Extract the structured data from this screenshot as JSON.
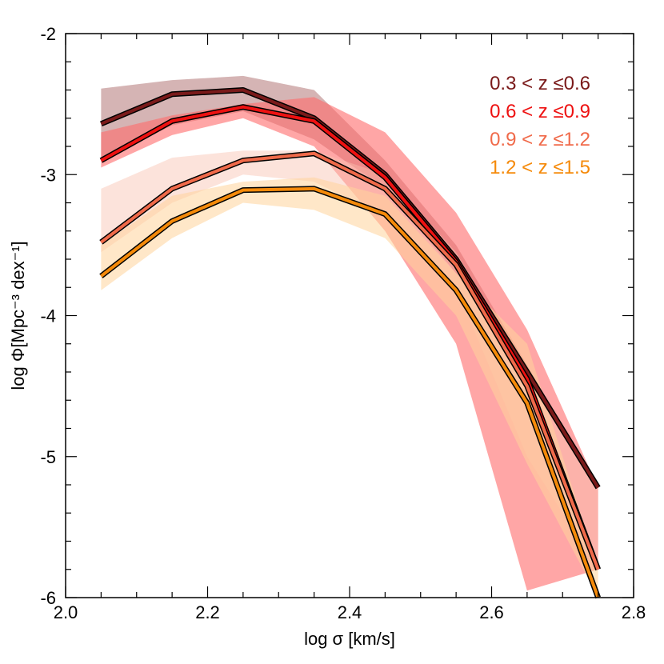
{
  "chart_data": {
    "type": "area",
    "title": "",
    "xlabel": "log σ [km/s]",
    "ylabel": "log Φ[Mpc⁻³ dex⁻¹]",
    "xlim": [
      2.0,
      2.8
    ],
    "ylim": [
      -6,
      -2
    ],
    "x_ticks": [
      "2.0",
      "2.2",
      "2.4",
      "2.6",
      "2.8"
    ],
    "x_tick_values": [
      2.0,
      2.2,
      2.4,
      2.6,
      2.8
    ],
    "y_ticks": [
      "-2",
      "-3",
      "-4",
      "-5",
      "-6"
    ],
    "y_tick_values": [
      -2,
      -3,
      -4,
      -5,
      -6
    ],
    "legend_position": "top-right",
    "grid": false,
    "series": [
      {
        "name": "0.3 < z ≤0.6",
        "color": "#7a1a1a",
        "band_color": "#b37777",
        "band_opacity": 0.55,
        "x": [
          2.05,
          2.15,
          2.25,
          2.35,
          2.45,
          2.55,
          2.65,
          2.75
        ],
        "y": [
          -2.64,
          -2.43,
          -2.4,
          -2.6,
          -3.0,
          -3.6,
          -4.4,
          -5.22
        ],
        "upper": [
          -2.39,
          -2.33,
          -2.3,
          -2.4,
          -2.9,
          -3.5,
          -4.35,
          -5.22
        ],
        "lower": [
          -2.9,
          -2.65,
          -2.55,
          -2.75,
          -3.1,
          -3.7,
          -4.45,
          -5.22
        ]
      },
      {
        "name": "0.6 < z ≤0.9",
        "color": "#ee1111",
        "band_color": "#ff6b6b",
        "band_opacity": 0.6,
        "x": [
          2.05,
          2.15,
          2.25,
          2.35,
          2.45,
          2.55,
          2.65,
          2.75
        ],
        "y": [
          -2.9,
          -2.62,
          -2.52,
          -2.62,
          -3.02,
          -3.62,
          -4.45,
          -5.8
        ],
        "upper": [
          -2.7,
          -2.58,
          -2.5,
          -2.45,
          -2.7,
          -3.27,
          -4.1,
          -5.22
        ],
        "lower": [
          -2.95,
          -2.72,
          -2.6,
          -2.8,
          -3.4,
          -4.2,
          -5.95,
          -5.8
        ]
      },
      {
        "name": "0.9 < z ≤1.2",
        "color": "#f06a4a",
        "band_color": "#f9c0b0",
        "band_opacity": 0.45,
        "x": [
          2.05,
          2.15,
          2.25,
          2.35,
          2.45,
          2.55,
          2.65,
          2.75
        ],
        "y": [
          -3.48,
          -3.1,
          -2.9,
          -2.85,
          -3.1,
          -3.64,
          -4.5,
          -5.8
        ],
        "upper": [
          -3.1,
          -2.88,
          -2.83,
          -2.83,
          -3.0,
          -3.55,
          -4.4,
          -5.22
        ],
        "lower": [
          -3.55,
          -3.2,
          -3.0,
          -3.05,
          -3.3,
          -3.8,
          -5.0,
          -5.8
        ]
      },
      {
        "name": "1.2 < z ≤1.5",
        "color": "#f58a0a",
        "band_color": "#ffd49a",
        "band_opacity": 0.55,
        "x": [
          2.05,
          2.15,
          2.25,
          2.35,
          2.45,
          2.55,
          2.65,
          2.75
        ],
        "y": [
          -3.72,
          -3.33,
          -3.11,
          -3.1,
          -3.28,
          -3.82,
          -4.62,
          -6.0
        ],
        "upper": [
          -3.5,
          -3.15,
          -3.05,
          -3.02,
          -3.15,
          -3.7,
          -4.2,
          -5.8
        ],
        "lower": [
          -3.82,
          -3.45,
          -3.2,
          -3.25,
          -3.45,
          -4.0,
          -5.05,
          -6.0
        ]
      }
    ]
  }
}
